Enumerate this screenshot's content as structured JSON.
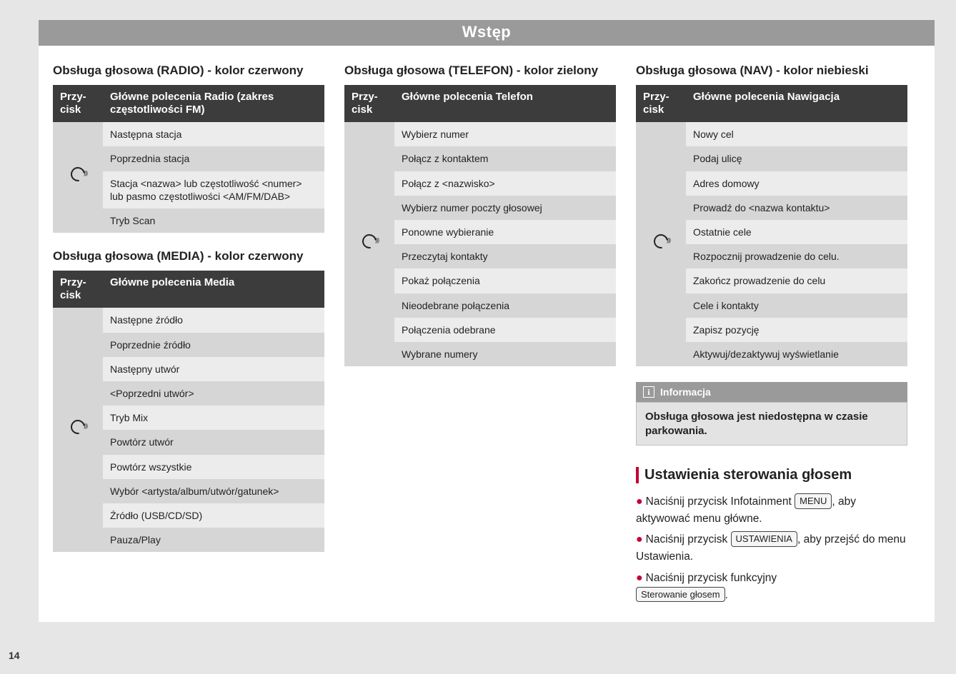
{
  "header": {
    "title": "Wstęp"
  },
  "page_number": "14",
  "columns": {
    "left": {
      "sections": [
        {
          "title": "Obsługa głosowa (RADIO) - kolor czerwony",
          "header_button": "Przy-\ncisk",
          "header_cmds": "Główne polecenia Radio (zakres częstotliwości FM)",
          "rows": [
            "Następna stacja",
            "Poprzednia stacja",
            "Stacja <nazwa> lub częstotliwość <numer> lub pasmo częstotliwości <AM/FM/DAB>",
            "Tryb Scan"
          ]
        },
        {
          "title": "Obsługa głosowa (MEDIA) - kolor czerwony",
          "header_button": "Przy-\ncisk",
          "header_cmds": "Główne polecenia Media",
          "rows": [
            "Następne źródło",
            "Poprzednie źródło",
            "Następny utwór",
            "<Poprzedni utwór>",
            "Tryb Mix",
            "Powtórz utwór",
            "Powtórz wszystkie",
            "Wybór <artysta/album/utwór/gatunek>",
            "Źródło (USB/CD/SD)",
            "Pauza/Play"
          ]
        }
      ]
    },
    "middle": {
      "sections": [
        {
          "title": "Obsługa głosowa (TELEFON) - kolor zielony",
          "header_button": "Przy-\ncisk",
          "header_cmds": "Główne polecenia Telefon",
          "rows": [
            "Wybierz numer",
            "Połącz z kontaktem",
            "Połącz z <nazwisko>",
            "Wybierz numer poczty głosowej",
            "Ponowne wybieranie",
            "Przeczytaj kontakty",
            "Pokaż połączenia",
            "Nieodebrane połączenia",
            "Połączenia odebrane",
            "Wybrane numery"
          ]
        }
      ]
    },
    "right": {
      "sections": [
        {
          "title": "Obsługa głosowa (NAV) - kolor niebieski",
          "header_button": "Przy-\ncisk",
          "header_cmds": "Główne polecenia Nawigacja",
          "rows": [
            "Nowy cel",
            "Podaj ulicę",
            "Adres domowy",
            "Prowadź do <nazwa kontaktu>",
            "Ostatnie cele",
            "Rozpocznij prowadzenie do celu.",
            "Zakończ prowadzenie do celu",
            "Cele i kontakty",
            "Zapisz pozycję",
            "Aktywuj/dezaktywuj wyświetlanie"
          ]
        }
      ],
      "info": {
        "label": "Informacja",
        "body": "Obsługa głosowa jest niedostępna w czasie parkowania."
      },
      "settings": {
        "heading": "Ustawienia sterowania głosem",
        "lines": {
          "l1a": "Naciśnij przycisk Infotainment ",
          "l1key": "MENU",
          "l1b": ", aby aktywować menu główne.",
          "l2a": "Naciśnij przycisk ",
          "l2key": "USTAWIENIA",
          "l2b": ", aby przejść do menu Ustawienia.",
          "l3a": "Naciśnij przycisk funkcyjny ",
          "l3key": "Sterowanie głosem",
          "l3b": "."
        }
      }
    }
  }
}
